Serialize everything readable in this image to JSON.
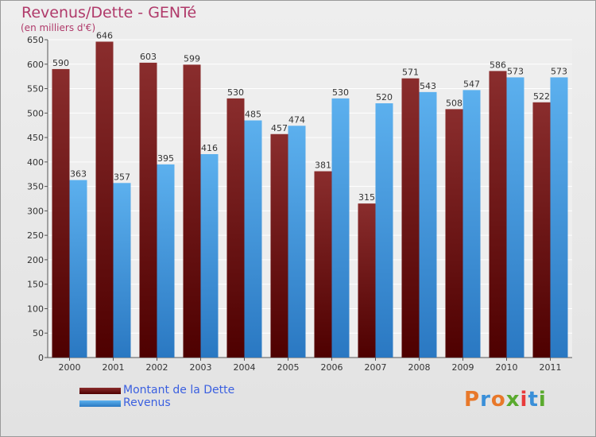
{
  "chart_data": {
    "type": "bar",
    "title": "Revenus/Dette - GENTé",
    "subtitle": "(en milliers d'€)",
    "categories": [
      "2000",
      "2001",
      "2002",
      "2003",
      "2004",
      "2005",
      "2006",
      "2007",
      "2008",
      "2009",
      "2010",
      "2011"
    ],
    "series": [
      {
        "name": "Montant de la Dette",
        "values": [
          590,
          646,
          603,
          599,
          530,
          457,
          381,
          315,
          571,
          508,
          586,
          522
        ],
        "color": "#7a1a1a"
      },
      {
        "name": "Revenus",
        "values": [
          363,
          357,
          395,
          416,
          485,
          474,
          530,
          520,
          543,
          547,
          573,
          573
        ],
        "color": "#4a9fe0"
      }
    ],
    "yticks": [
      0,
      50,
      100,
      150,
      200,
      250,
      300,
      350,
      400,
      450,
      500,
      550,
      600,
      650
    ],
    "ylim": [
      0,
      650
    ],
    "grid": true,
    "legend_position": "bottom-left"
  },
  "logo": {
    "text": "Proxiti"
  }
}
